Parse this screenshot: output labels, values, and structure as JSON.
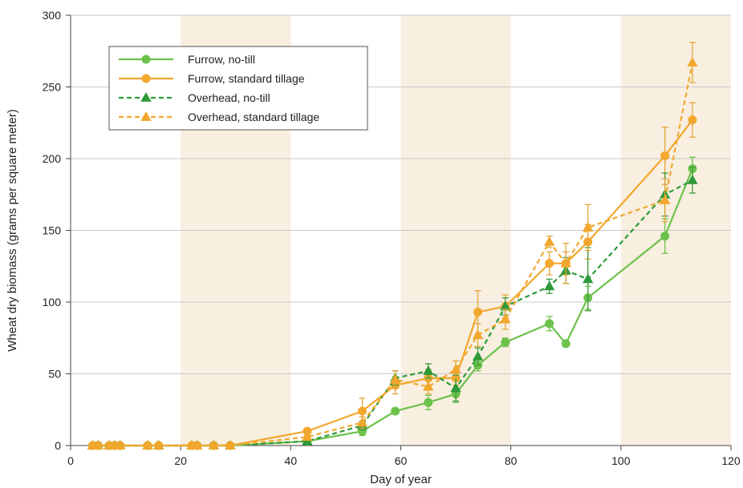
{
  "chart_data": {
    "type": "line",
    "xlabel": "Day of year",
    "ylabel": "Wheat dry biomass (grams per square meter)",
    "xlim": [
      0,
      120
    ],
    "ylim": [
      0,
      300
    ],
    "x_ticks": [
      0,
      20,
      40,
      60,
      80,
      100,
      120
    ],
    "y_ticks": [
      0,
      50,
      100,
      150,
      200,
      250,
      300
    ],
    "grid": "horizontal",
    "legend_position": "top-left",
    "shaded_x_ranges": [
      [
        20,
        40
      ],
      [
        60,
        80
      ],
      [
        100,
        120
      ]
    ],
    "colors": {
      "light_green": "#6cc24a",
      "dark_green": "#2e9a3a",
      "orange": "#f2a72d",
      "shade": "#f6ead6",
      "grid": "#c8c8c8",
      "axis": "#444444",
      "error_bar": "#e3a53a",
      "error_bar_green": "#3e9a3e"
    },
    "series": [
      {
        "name": "Furrow, no-till",
        "color": "#6cc24a",
        "dash": "solid",
        "marker": "circle",
        "x": [
          4,
          5,
          7,
          8,
          9,
          14,
          16,
          22,
          23,
          26,
          29,
          43,
          53,
          59,
          65,
          70,
          74,
          79,
          87,
          90,
          94,
          108,
          113
        ],
        "y": [
          0,
          0,
          0,
          0,
          0,
          0,
          0,
          0,
          0,
          0,
          0,
          3,
          10,
          24,
          30,
          36,
          56,
          72,
          85,
          71,
          103,
          146,
          193
        ],
        "err": [
          0,
          0,
          0,
          0,
          0,
          0,
          0,
          0,
          0,
          0,
          0,
          1,
          3,
          2,
          5,
          6,
          4,
          3,
          5,
          2,
          8,
          12,
          8
        ]
      },
      {
        "name": "Furrow, standard tillage",
        "color": "#f2a72d",
        "dash": "solid",
        "marker": "circle",
        "x": [
          4,
          5,
          7,
          8,
          9,
          14,
          16,
          22,
          23,
          26,
          29,
          43,
          53,
          59,
          65,
          70,
          74,
          79,
          87,
          90,
          94,
          108,
          113
        ],
        "y": [
          0,
          0,
          0,
          0,
          0,
          0,
          0,
          0,
          0,
          0,
          0,
          10,
          24,
          42,
          47,
          47,
          93,
          97,
          127,
          127,
          142,
          202,
          227
        ],
        "err": [
          0,
          0,
          0,
          0,
          0,
          0,
          0,
          0,
          0,
          0,
          0,
          2,
          9,
          6,
          6,
          5,
          15,
          8,
          8,
          8,
          12,
          20,
          12
        ]
      },
      {
        "name": "Overhead, no-till",
        "color": "#2e9a3a",
        "dash": "dashed",
        "marker": "triangle",
        "x": [
          4,
          5,
          7,
          8,
          9,
          14,
          16,
          22,
          23,
          26,
          29,
          43,
          53,
          59,
          65,
          70,
          74,
          79,
          87,
          90,
          94,
          108,
          113
        ],
        "y": [
          0,
          0,
          0,
          0,
          0,
          0,
          0,
          0,
          0,
          0,
          0,
          3,
          14,
          47,
          52,
          40,
          62,
          97,
          111,
          122,
          116,
          175,
          185
        ],
        "err": [
          0,
          0,
          0,
          0,
          0,
          0,
          0,
          0,
          0,
          0,
          0,
          1,
          3,
          5,
          5,
          9,
          6,
          6,
          5,
          9,
          22,
          15,
          9
        ]
      },
      {
        "name": "Overhead, standard tillage",
        "color": "#f2a72d",
        "dash": "dashed",
        "marker": "triangle",
        "x": [
          4,
          5,
          7,
          8,
          9,
          14,
          16,
          22,
          23,
          26,
          29,
          43,
          53,
          59,
          65,
          70,
          74,
          79,
          87,
          90,
          94,
          108,
          113
        ],
        "y": [
          0,
          0,
          0,
          0,
          0,
          0,
          0,
          0,
          0,
          0,
          0,
          6,
          16,
          46,
          41,
          53,
          77,
          88,
          142,
          127,
          152,
          171,
          267
        ],
        "err": [
          0,
          0,
          0,
          0,
          0,
          0,
          0,
          0,
          0,
          0,
          0,
          1,
          4,
          6,
          5,
          6,
          8,
          7,
          4,
          14,
          16,
          15,
          14
        ]
      }
    ]
  }
}
